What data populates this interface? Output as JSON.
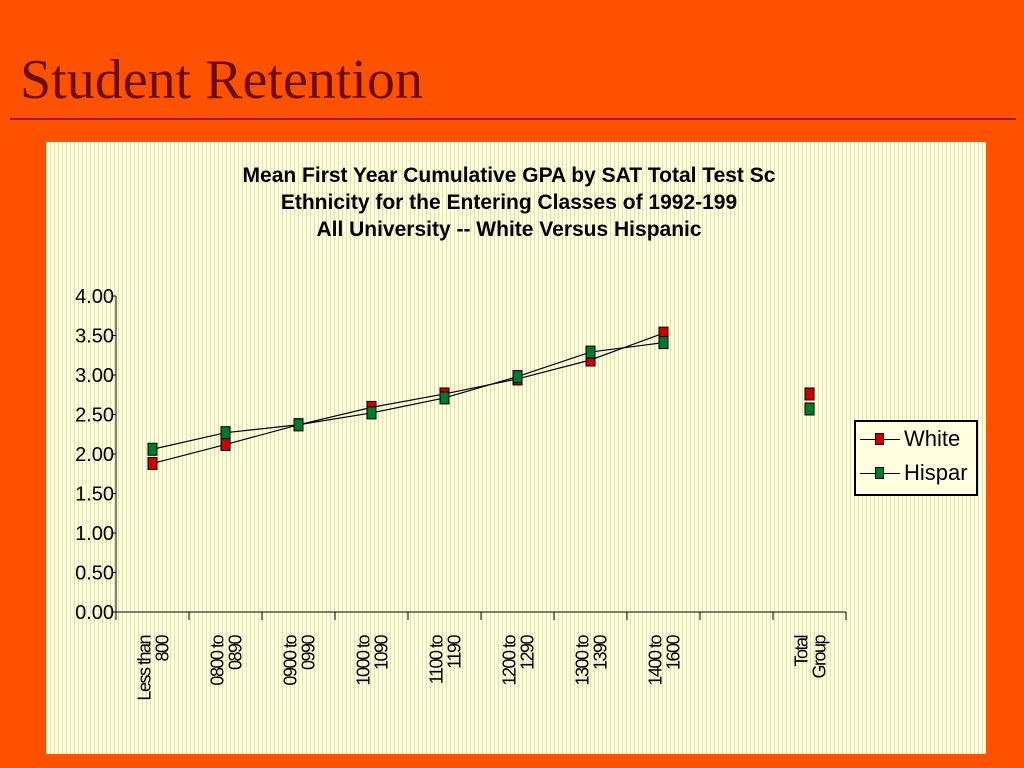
{
  "slide": {
    "title": "Student Retention"
  },
  "chart_data": {
    "type": "line",
    "title_lines": [
      "Mean First Year Cumulative GPA by SAT Total Test Sc",
      "Ethnicity for the Entering Classes of 1992-199",
      "All University -- White Versus Hispanic"
    ],
    "categories": [
      "Less than 800",
      "0800 to 0890",
      "0900 to 0990",
      "1000 to 1090",
      "1100 to 1190",
      "1200 to 1290",
      "1300 to 1390",
      "1400 to 1600",
      "",
      "Total Group"
    ],
    "y_ticks": [
      "4.00",
      "3.50",
      "3.00",
      "2.50",
      "2.00",
      "1.50",
      "1.00",
      "0.50",
      "0.00"
    ],
    "ylim": [
      0,
      4
    ],
    "series": [
      {
        "name": "White",
        "color": "#cc0000",
        "values": [
          1.88,
          2.12,
          2.37,
          2.59,
          2.76,
          2.95,
          3.19,
          3.53,
          null,
          2.76
        ]
      },
      {
        "name": "Hispar",
        "color": "#007a2a",
        "values": [
          2.06,
          2.27,
          2.37,
          2.52,
          2.71,
          2.98,
          3.29,
          3.41,
          null,
          2.57
        ]
      }
    ],
    "legend_position": "right",
    "grid": false
  }
}
